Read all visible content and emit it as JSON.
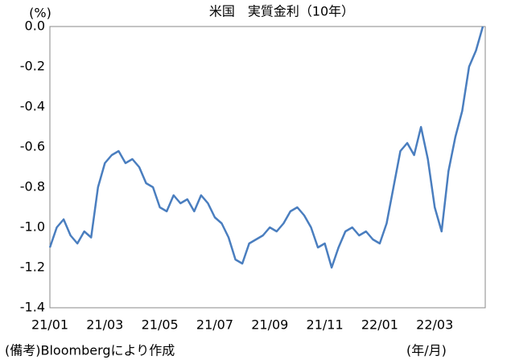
{
  "chart_data": {
    "type": "line",
    "title": "米国　実質金利（10年）",
    "y_unit": "(%)",
    "x_unit": "(年/月)",
    "note": "(備考)Bloombergにより作成",
    "color": "#4a7ebf",
    "grid": false,
    "categories": [
      "21/01",
      null,
      null,
      null,
      null,
      null,
      null,
      null,
      "21/03",
      null,
      null,
      null,
      null,
      null,
      null,
      null,
      "21/05",
      null,
      null,
      null,
      null,
      null,
      null,
      null,
      "21/07",
      null,
      null,
      null,
      null,
      null,
      null,
      null,
      "21/09",
      null,
      null,
      null,
      null,
      null,
      null,
      null,
      "21/11",
      null,
      null,
      null,
      null,
      null,
      null,
      null,
      "22/01",
      null,
      null,
      null,
      null,
      null,
      null,
      null,
      "22/03",
      null,
      null,
      null,
      null,
      null,
      null,
      null
    ],
    "values": [
      -1.1,
      -1.0,
      -0.96,
      -1.04,
      -1.08,
      -1.02,
      -1.05,
      -0.8,
      -0.68,
      -0.64,
      -0.62,
      -0.68,
      -0.66,
      -0.7,
      -0.78,
      -0.8,
      -0.9,
      -0.92,
      -0.84,
      -0.88,
      -0.86,
      -0.92,
      -0.84,
      -0.88,
      -0.95,
      -0.98,
      -1.05,
      -1.16,
      -1.18,
      -1.08,
      -1.06,
      -1.04,
      -1.0,
      -1.02,
      -0.98,
      -0.92,
      -0.9,
      -0.94,
      -1.0,
      -1.1,
      -1.08,
      -1.2,
      -1.1,
      -1.02,
      -1.0,
      -1.04,
      -1.02,
      -1.06,
      -1.08,
      -0.98,
      -0.8,
      -0.62,
      -0.58,
      -0.64,
      -0.5,
      -0.66,
      -0.9,
      -1.02,
      -0.72,
      -0.55,
      -0.42,
      -0.2,
      -0.12,
      0.0
    ],
    "ylim": [
      -1.4,
      0
    ],
    "yticks": [
      {
        "value": 0,
        "label": "0.0"
      },
      -0.2,
      -0.4,
      -0.6,
      -0.8,
      {
        "value": -1,
        "label": "-1.0"
      },
      -1.2,
      -1.4
    ]
  }
}
